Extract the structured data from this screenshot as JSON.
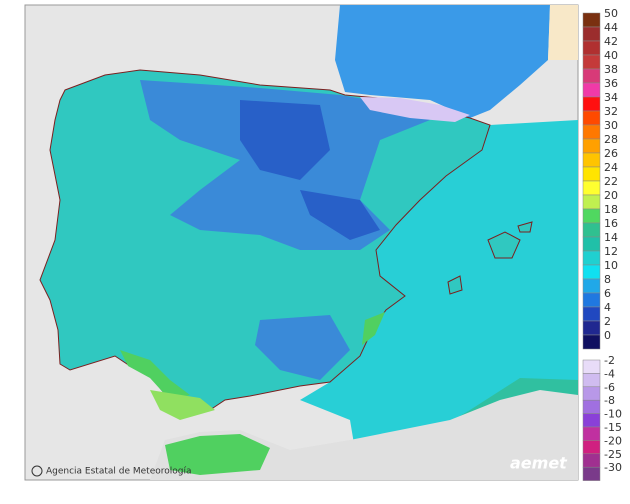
{
  "map": {
    "credit": "Agencia Estatal de Meteorología",
    "logo": "aemet",
    "legend_upper": [
      {
        "value": 50,
        "color": "#7a3010"
      },
      {
        "value": 44,
        "color": "#9b2d2d"
      },
      {
        "value": 42,
        "color": "#b03030"
      },
      {
        "value": 40,
        "color": "#c43a3a"
      },
      {
        "value": 38,
        "color": "#d83a78"
      },
      {
        "value": 36,
        "color": "#f03aa8"
      },
      {
        "value": 34,
        "color": "#ff1010"
      },
      {
        "value": 32,
        "color": "#ff4a00"
      },
      {
        "value": 30,
        "color": "#ff7800"
      },
      {
        "value": 28,
        "color": "#ffa000"
      },
      {
        "value": 26,
        "color": "#ffc400"
      },
      {
        "value": 24,
        "color": "#ffe400"
      },
      {
        "value": 22,
        "color": "#ffff30"
      },
      {
        "value": 20,
        "color": "#c0f050"
      },
      {
        "value": 18,
        "color": "#50d860"
      },
      {
        "value": 16,
        "color": "#30c090"
      },
      {
        "value": 14,
        "color": "#20c0a8"
      },
      {
        "value": 12,
        "color": "#20d0d0"
      },
      {
        "value": 10,
        "color": "#10e0f0"
      },
      {
        "value": 8,
        "color": "#20a8e8"
      },
      {
        "value": 6,
        "color": "#2078e0"
      },
      {
        "value": 4,
        "color": "#2048c0"
      },
      {
        "value": 2,
        "color": "#202890"
      },
      {
        "value": 0,
        "color": "#101060"
      }
    ],
    "legend_lower": [
      {
        "value": -2,
        "color": "#e8dcf8"
      },
      {
        "value": -4,
        "color": "#d0bcf0"
      },
      {
        "value": -6,
        "color": "#b898e8"
      },
      {
        "value": -8,
        "color": "#a070e0"
      },
      {
        "value": -10,
        "color": "#8a40d8"
      },
      {
        "value": -15,
        "color": "#c030a0"
      },
      {
        "value": -20,
        "color": "#d02080"
      },
      {
        "value": -25,
        "color": "#a03090"
      },
      {
        "value": -30,
        "color": "#7a3a8a"
      }
    ]
  }
}
